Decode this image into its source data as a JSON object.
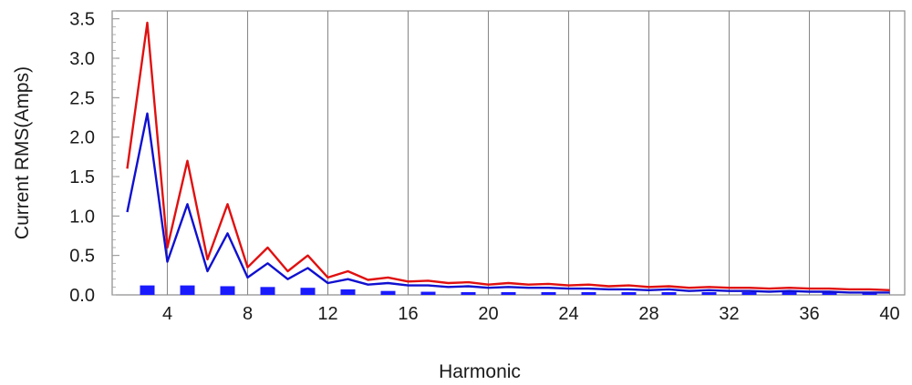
{
  "chart_data": {
    "type": "line",
    "xlabel": "Harmonic",
    "ylabel": "Current RMS(Amps)",
    "xlim": [
      1.25,
      40.75
    ],
    "ylim": [
      0,
      3.6
    ],
    "x_ticks": [
      4,
      8,
      12,
      16,
      20,
      24,
      28,
      32,
      36,
      40
    ],
    "x_tick_labels": [
      "4",
      "8",
      "12",
      "16",
      "20",
      "24",
      "28",
      "32",
      "36",
      "40"
    ],
    "y_ticks": [
      0,
      0.5,
      1.0,
      1.5,
      2.0,
      2.5,
      3.0,
      3.5
    ],
    "y_tick_labels": [
      "0.0",
      "0.5",
      "1.0",
      "1.5",
      "2.0",
      "2.5",
      "3.0",
      "3.5"
    ],
    "grid": true,
    "x": [
      2,
      3,
      4,
      5,
      6,
      7,
      8,
      9,
      10,
      11,
      12,
      13,
      14,
      15,
      16,
      17,
      18,
      19,
      20,
      21,
      22,
      23,
      24,
      25,
      26,
      27,
      28,
      29,
      30,
      31,
      32,
      33,
      34,
      35,
      36,
      37,
      38,
      39,
      40
    ],
    "series": [
      {
        "style": "line",
        "color": "#e01010",
        "values": [
          1.6,
          3.45,
          0.6,
          1.7,
          0.45,
          1.15,
          0.35,
          0.6,
          0.3,
          0.5,
          0.22,
          0.3,
          0.19,
          0.22,
          0.17,
          0.18,
          0.15,
          0.16,
          0.13,
          0.15,
          0.13,
          0.14,
          0.12,
          0.13,
          0.11,
          0.12,
          0.1,
          0.11,
          0.09,
          0.1,
          0.09,
          0.09,
          0.08,
          0.09,
          0.08,
          0.08,
          0.07,
          0.07,
          0.06
        ]
      },
      {
        "style": "line",
        "color": "#1010d0",
        "values": [
          1.05,
          2.3,
          0.42,
          1.15,
          0.3,
          0.78,
          0.22,
          0.4,
          0.2,
          0.34,
          0.15,
          0.2,
          0.13,
          0.15,
          0.12,
          0.12,
          0.1,
          0.11,
          0.09,
          0.1,
          0.09,
          0.09,
          0.08,
          0.08,
          0.07,
          0.07,
          0.06,
          0.07,
          0.05,
          0.06,
          0.05,
          0.05,
          0.04,
          0.05,
          0.04,
          0.04,
          0.03,
          0.03,
          0.03
        ]
      },
      {
        "style": "bar",
        "color": "#1a1aff",
        "x": [
          3,
          5,
          7,
          9,
          11,
          13,
          15,
          17,
          19,
          21,
          23,
          25,
          27,
          29,
          31,
          33,
          35,
          37,
          39
        ],
        "values": [
          0.12,
          0.12,
          0.11,
          0.1,
          0.09,
          0.07,
          0.05,
          0.04,
          0.025,
          0.02,
          0.02,
          0.018,
          0.015,
          0.013,
          0.012,
          0.01,
          0.01,
          0.01,
          0.01
        ]
      }
    ]
  }
}
